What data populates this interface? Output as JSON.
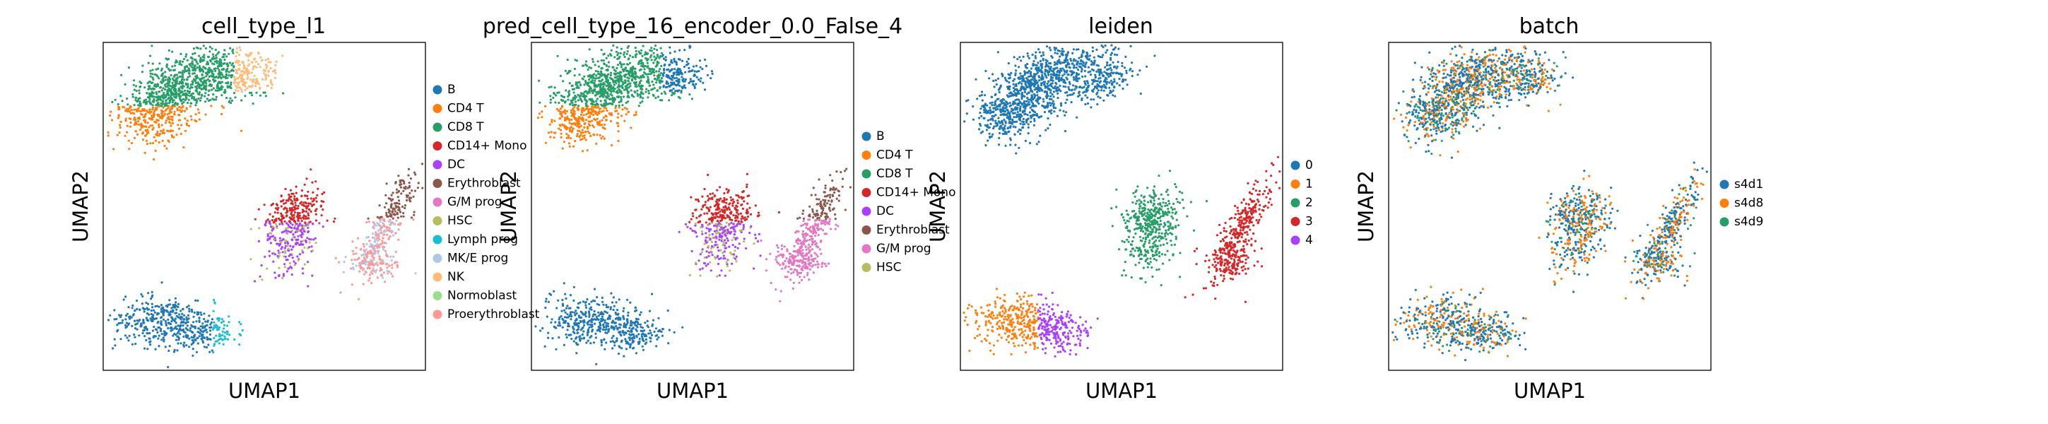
{
  "figure": {
    "xlabel": "UMAP1",
    "ylabel": "UMAP2"
  },
  "chart_data": [
    {
      "type": "scatter",
      "title": "cell_type_l1",
      "xlabel": "UMAP1",
      "ylabel": "UMAP2",
      "grid": false,
      "legend_position": "right",
      "categories": [
        "B",
        "CD4 T",
        "CD8 T",
        "CD14+ Mono",
        "DC",
        "Erythroblast",
        "G/M prog",
        "HSC",
        "Lymph prog",
        "MK/E prog",
        "NK",
        "Normoblast",
        "Proerythroblast"
      ],
      "colors": [
        "#1f77b4",
        "#ff7f0e",
        "#279e68",
        "#d62728",
        "#aa40fc",
        "#8c564b",
        "#e377c2",
        "#b5bd61",
        "#17becf",
        "#aec7e8",
        "#ffbb78",
        "#98df8a",
        "#ff9896"
      ]
    },
    {
      "type": "scatter",
      "title": "pred_cell_type_16_encoder_0.0_False_4",
      "xlabel": "UMAP1",
      "ylabel": "UMAP2",
      "grid": false,
      "legend_position": "right",
      "categories": [
        "B",
        "CD4 T",
        "CD8 T",
        "CD14+ Mono",
        "DC",
        "Erythroblast",
        "G/M prog",
        "HSC"
      ],
      "colors": [
        "#1f77b4",
        "#ff7f0e",
        "#279e68",
        "#d62728",
        "#aa40fc",
        "#8c564b",
        "#e377c2",
        "#b5bd61"
      ]
    },
    {
      "type": "scatter",
      "title": "leiden",
      "xlabel": "UMAP1",
      "ylabel": "UMAP2",
      "grid": false,
      "legend_position": "right",
      "categories": [
        "0",
        "1",
        "2",
        "3",
        "4"
      ],
      "colors": [
        "#1f77b4",
        "#ff7f0e",
        "#279e68",
        "#d62728",
        "#aa40fc"
      ]
    },
    {
      "type": "scatter",
      "title": "batch",
      "xlabel": "UMAP1",
      "ylabel": "UMAP2",
      "grid": false,
      "legend_position": "right",
      "categories": [
        "s4d1",
        "s4d8",
        "s4d9"
      ],
      "colors": [
        "#1f77b4",
        "#ff7f0e",
        "#279e68"
      ]
    }
  ]
}
